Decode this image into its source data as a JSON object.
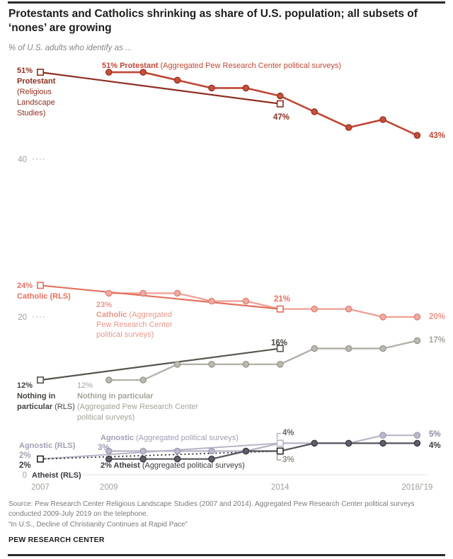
{
  "chart_data": {
    "type": "line",
    "unit": "%",
    "title": "Protestants and Catholics shrinking as share of U.S. population; all subsets of ‘nones’ are growing",
    "subtitle": "% of U.S. adults who identify as ...",
    "x_axis": {
      "range": [
        2007,
        2018
      ],
      "ticks": [
        {
          "year": 2007,
          "label": "2007"
        },
        {
          "year": 2009,
          "label": "2009"
        },
        {
          "year": 2014,
          "label": "2014"
        },
        {
          "year": 2018,
          "label": "2018/’19"
        }
      ]
    },
    "y_axis": {
      "range": [
        0,
        53
      ],
      "ticks": [
        0,
        20,
        40
      ]
    },
    "series": [
      {
        "id": "agnostic-rls",
        "label": "Agnostic (RLS)",
        "color": "#b9b4c7",
        "width": 2,
        "marker": "square",
        "x": [
          2007,
          2014
        ],
        "values": [
          2,
          4
        ]
      },
      {
        "id": "agnostic-agg",
        "label": "Agnostic (Aggregated political surveys)",
        "color": "#b9b4c7",
        "width": 2.2,
        "marker": "circle",
        "marker_fill": "#beb9cb",
        "marker_stroke": "#a19bb4",
        "x": [
          2009,
          2010,
          2011,
          2012,
          2013,
          2014,
          2015,
          2016,
          2017,
          2018
        ],
        "values": [
          3,
          3,
          3,
          3,
          3,
          4,
          4,
          4,
          5,
          5
        ]
      },
      {
        "id": "atheist-rls",
        "label": "Atheist (RLS)",
        "color": "#2f2d2a",
        "width": 1.8,
        "dash": "2 3.5",
        "marker": "square",
        "x": [
          2007,
          2014
        ],
        "values": [
          2,
          3
        ]
      },
      {
        "id": "atheist-agg",
        "label": "Atheist (Aggregated political surveys)",
        "color": "#56535d",
        "width": 2.2,
        "marker": "circle",
        "marker_fill": "#615e69",
        "marker_stroke": "#3e3b46",
        "x": [
          2009,
          2010,
          2011,
          2012,
          2013,
          2014,
          2015,
          2016,
          2017,
          2018
        ],
        "values": [
          2,
          2,
          2,
          2,
          3,
          3,
          4,
          4,
          4,
          4
        ]
      },
      {
        "id": "nothing-agg",
        "label": "Nothing in particular (Aggregated Pew Research Center political surveys)",
        "color": "#b5b2aa",
        "width": 2.4,
        "marker": "circle",
        "marker_fill": "#bcb9b1",
        "marker_stroke": "#9a978f",
        "x": [
          2009,
          2010,
          2011,
          2012,
          2013,
          2014,
          2015,
          2016,
          2017,
          2018
        ],
        "values": [
          12,
          12,
          14,
          14,
          14,
          14,
          16,
          16,
          16,
          17
        ]
      },
      {
        "id": "nothing-rls",
        "label": "Nothing in particular (RLS)",
        "color": "#57554e",
        "width": 2.2,
        "marker": "square",
        "x": [
          2007,
          2014
        ],
        "values": [
          12,
          16
        ]
      },
      {
        "id": "catholic-agg",
        "label": "Catholic (Aggregated Pew Research Center political surveys)",
        "color": "#efa298",
        "width": 2.4,
        "marker": "circle",
        "marker_fill": "#f1aba1",
        "marker_stroke": "#dc8377",
        "x": [
          2009,
          2010,
          2011,
          2012,
          2013,
          2014,
          2015,
          2016,
          2017,
          2018
        ],
        "values": [
          23,
          23,
          23,
          22,
          22,
          21,
          21,
          21,
          20,
          20
        ]
      },
      {
        "id": "catholic-rls",
        "label": "Catholic (RLS)",
        "color": "#e4705f",
        "width": 2.2,
        "marker": "square",
        "x": [
          2007,
          2014
        ],
        "values": [
          24,
          21
        ]
      },
      {
        "id": "protestant-rls",
        "label": "Protestant (Religious Landscape Studies)",
        "color": "#8e2d20",
        "width": 2.2,
        "marker": "square",
        "x": [
          2007,
          2014
        ],
        "values": [
          51,
          47
        ]
      },
      {
        "id": "protestant-agg",
        "label": "Protestant (Aggregated Pew Research Center political surveys)",
        "color": "#bf4734",
        "width": 2.6,
        "marker": "circle",
        "marker_fill": "#c5513d",
        "marker_stroke": "#9c3021",
        "x": [
          2009,
          2010,
          2011,
          2012,
          2013,
          2014,
          2015,
          2016,
          2017,
          2018
        ],
        "values": [
          51,
          51,
          50,
          49,
          49,
          48,
          46,
          44,
          45,
          43
        ]
      }
    ],
    "annotations": {
      "protestant_rls": {
        "pct": "51%",
        "name": "Protestant",
        "sub": "(Religious\nLandscape\nStudies)"
      },
      "protestant_agg": {
        "pct_name": "51% Protestant",
        "rest": "(Aggregated Pew Research Center political surveys)"
      },
      "protestant_rls_2014": "47%",
      "protestant_agg_end": "43%",
      "catholic_rls": {
        "pct": "24%",
        "name": "Catholic (RLS)"
      },
      "catholic_agg": {
        "pct": "23%",
        "name": "Catholic",
        "rest": "(Aggregated Pew Research Center political surveys)"
      },
      "catholic_rls_2014": "21%",
      "catholic_agg_end": "20%",
      "nothing_rls": {
        "pct": "12%",
        "name": "Nothing in particular",
        "rest": "(RLS)"
      },
      "nothing_agg": {
        "pct": "12%",
        "name": "Nothing in particular",
        "rest": "(Aggregated Pew Research Center political surveys)"
      },
      "nothing_rls_2014": "16%",
      "nothing_agg_end": "17%",
      "agnostic_rls_label": "Agnostic (RLS)",
      "agnostic_rls_pct": "2%",
      "atheist_rls_pct": "2%",
      "atheist_rls_label": "Atheist (RLS)",
      "agnostic_agg": {
        "name": "Agnostic",
        "rest": "(Aggregated political surveys)"
      },
      "agnostic_agg_pct": "3%",
      "atheist_agg": {
        "pct_name": "2% Atheist",
        "rest": "(Aggregated political surveys)"
      },
      "agnostic_rls_2014": "4%",
      "atheist_rls_2014": "3%",
      "agnostic_agg_end": "5%",
      "atheist_agg_end": "4%"
    }
  },
  "footer": {
    "source": "Source: Pew Research Center Religious Landscape Studies (2007 and 2014). Aggregated Pew Research Center political surveys\nconducted 2009-July 2019 on the telephone.",
    "report": "“In U.S., Decline of Christianity Continues at Rapid Pace”",
    "brand": "PEW RESEARCH CENTER"
  }
}
